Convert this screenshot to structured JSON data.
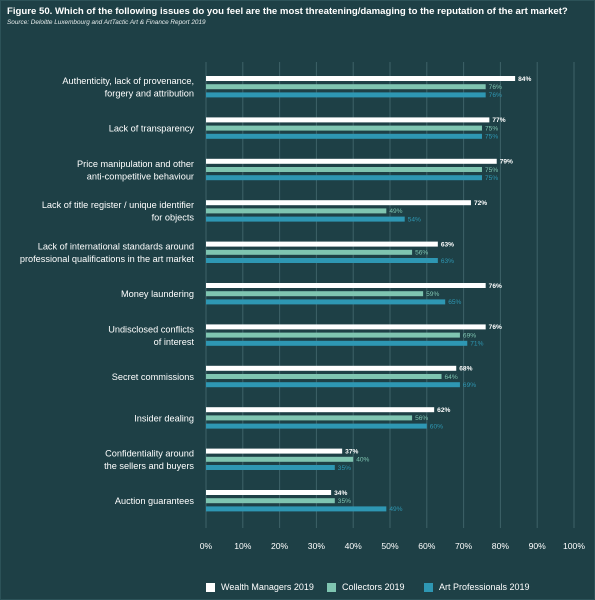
{
  "header": {
    "title": "Figure 50. Which of the following issues do you feel are the most threatening/damaging to the reputation of the art market?",
    "source": "Source: Deloitte Luxembourg and ArtTactic Art & Finance Report 2019"
  },
  "colors": {
    "background": "#1e4046",
    "grid": "#3e6268",
    "wealth_managers": "#ffffff",
    "collectors": "#7fc5b1",
    "art_professionals": "#2e97b3"
  },
  "chart_data": {
    "type": "bar",
    "orientation": "horizontal",
    "title": "Figure 50. Which of the following issues do you feel are the most threatening/damaging to the reputation of the art market?",
    "xlim": [
      0,
      100
    ],
    "x_ticks": [
      "0%",
      "10%",
      "20%",
      "30%",
      "40%",
      "50%",
      "60%",
      "70%",
      "80%",
      "90%",
      "100%"
    ],
    "grid": true,
    "legend_position": "bottom",
    "categories": [
      [
        "Authenticity, lack of provenance,",
        "forgery and attribution"
      ],
      [
        "Lack of transparency"
      ],
      [
        "Price manipulation and other",
        "anti-competitive behaviour"
      ],
      [
        "Lack of title register / unique identifier",
        "for objects"
      ],
      [
        "Lack of international standards around",
        "professional qualifications in the art market"
      ],
      [
        "Money laundering"
      ],
      [
        "Undisclosed conflicts",
        "of interest"
      ],
      [
        "Secret commissions"
      ],
      [
        "Insider dealing"
      ],
      [
        "Confidentiality around",
        "the sellers and buyers"
      ],
      [
        "Auction guarantees"
      ]
    ],
    "series": [
      {
        "name": "Wealth Managers 2019",
        "values": [
          84,
          77,
          79,
          72,
          63,
          76,
          76,
          68,
          62,
          37,
          34
        ]
      },
      {
        "name": "Collectors 2019",
        "values": [
          76,
          75,
          75,
          49,
          56,
          59,
          69,
          64,
          56,
          40,
          35
        ]
      },
      {
        "name": "Art Professionals 2019",
        "values": [
          76,
          75,
          75,
          54,
          63,
          65,
          71,
          69,
          60,
          35,
          49
        ]
      }
    ]
  }
}
